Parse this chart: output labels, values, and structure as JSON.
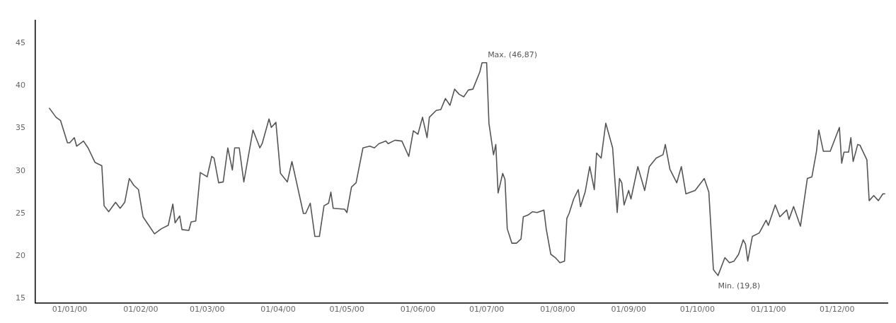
{
  "chart_data": {
    "type": "line",
    "x": [
      "1999-12-23",
      "1999-12-26",
      "1999-12-28",
      "1999-12-31",
      "2000-01-01",
      "2000-01-03",
      "2000-01-04",
      "2000-01-07",
      "2000-01-09",
      "2000-01-12",
      "2000-01-15",
      "2000-01-16",
      "2000-01-18",
      "2000-01-21",
      "2000-01-23",
      "2000-01-25",
      "2000-01-27",
      "2000-01-29",
      "2000-01-31",
      "2000-02-02",
      "2000-02-05",
      "2000-02-07",
      "2000-02-10",
      "2000-02-13",
      "2000-02-15",
      "2000-02-16",
      "2000-02-18",
      "2000-02-19",
      "2000-02-22",
      "2000-02-23",
      "2000-02-25",
      "2000-02-27",
      "2000-03-01",
      "2000-03-03",
      "2000-03-04",
      "2000-03-06",
      "2000-03-08",
      "2000-03-10",
      "2000-03-12",
      "2000-03-13",
      "2000-03-15",
      "2000-03-17",
      "2000-03-21",
      "2000-03-24",
      "2000-03-25",
      "2000-03-28",
      "2000-03-29",
      "2000-03-31",
      "2000-04-02",
      "2000-04-05",
      "2000-04-07",
      "2000-04-08",
      "2000-04-12",
      "2000-04-13",
      "2000-04-15",
      "2000-04-17",
      "2000-04-19",
      "2000-04-21",
      "2000-04-23",
      "2000-04-24",
      "2000-04-25",
      "2000-04-30",
      "2000-05-01",
      "2000-05-03",
      "2000-05-05",
      "2000-05-08",
      "2000-05-11",
      "2000-05-13",
      "2000-05-15",
      "2000-05-18",
      "2000-05-19",
      "2000-05-22",
      "2000-05-25",
      "2000-05-28",
      "2000-05-30",
      "2000-06-01",
      "2000-06-03",
      "2000-06-05",
      "2000-06-06",
      "2000-06-09",
      "2000-06-11",
      "2000-06-13",
      "2000-06-15",
      "2000-06-17",
      "2000-06-19",
      "2000-06-21",
      "2000-06-23",
      "2000-06-25",
      "2000-06-28",
      "2000-06-29",
      "2000-07-01",
      "2000-07-02",
      "2000-07-04",
      "2000-07-05",
      "2000-07-06",
      "2000-07-08",
      "2000-07-09",
      "2000-07-10",
      "2000-07-12",
      "2000-07-14",
      "2000-07-16",
      "2000-07-17",
      "2000-07-19",
      "2000-07-21",
      "2000-07-23",
      "2000-07-26",
      "2000-07-27",
      "2000-07-29",
      "2000-07-31",
      "2000-08-02",
      "2000-08-04",
      "2000-08-05",
      "2000-08-06",
      "2000-08-08",
      "2000-08-10",
      "2000-08-11",
      "2000-08-13",
      "2000-08-15",
      "2000-08-17",
      "2000-08-18",
      "2000-08-20",
      "2000-08-22",
      "2000-08-25",
      "2000-08-27",
      "2000-08-28",
      "2000-08-29",
      "2000-08-30",
      "2000-09-01",
      "2000-09-02",
      "2000-09-05",
      "2000-09-08",
      "2000-09-10",
      "2000-09-13",
      "2000-09-16",
      "2000-09-17",
      "2000-09-19",
      "2000-09-22",
      "2000-09-24",
      "2000-09-26",
      "2000-09-30",
      "2000-10-04",
      "2000-10-06",
      "2000-10-08",
      "2000-10-10",
      "2000-10-13",
      "2000-10-15",
      "2000-10-17",
      "2000-10-19",
      "2000-10-21",
      "2000-10-22",
      "2000-10-23",
      "2000-10-25",
      "2000-10-28",
      "2000-10-31",
      "2000-11-01",
      "2000-11-04",
      "2000-11-06",
      "2000-11-09",
      "2000-11-10",
      "2000-11-12",
      "2000-11-15",
      "2000-11-18",
      "2000-11-20",
      "2000-11-22",
      "2000-11-23",
      "2000-11-25",
      "2000-11-28",
      "2000-12-02",
      "2000-12-03",
      "2000-12-04",
      "2000-12-06",
      "2000-12-07",
      "2000-12-08",
      "2000-12-10",
      "2000-12-11",
      "2000-12-14",
      "2000-12-15",
      "2000-12-17",
      "2000-12-19",
      "2000-12-21",
      "2000-12-22"
    ],
    "series": [
      {
        "color": "#555555",
        "values": [
          37.4,
          36.3,
          35.9,
          33.3,
          33.3,
          33.9,
          32.9,
          33.5,
          32.7,
          31.0,
          30.6,
          25.9,
          25.2,
          26.3,
          25.6,
          26.3,
          29.1,
          28.3,
          27.8,
          24.6,
          23.4,
          22.6,
          23.2,
          23.6,
          26.1,
          23.9,
          24.7,
          23.1,
          23.0,
          24.0,
          24.1,
          29.8,
          29.3,
          31.7,
          31.5,
          28.6,
          28.7,
          32.7,
          30.1,
          32.7,
          32.7,
          28.7,
          34.8,
          32.7,
          33.2,
          36.1,
          35.1,
          35.7,
          29.7,
          28.7,
          31.1,
          29.9,
          25.0,
          25.0,
          26.2,
          22.3,
          22.3,
          25.9,
          26.2,
          27.5,
          25.6,
          25.5,
          25.1,
          28.1,
          28.6,
          32.7,
          32.9,
          32.7,
          33.2,
          33.5,
          33.2,
          33.6,
          33.5,
          31.7,
          34.7,
          34.3,
          36.3,
          33.9,
          36.3,
          37.1,
          37.2,
          38.5,
          37.7,
          39.6,
          39.0,
          38.7,
          39.5,
          39.6,
          41.6,
          42.7,
          42.7,
          35.6,
          31.9,
          33.1,
          27.4,
          29.7,
          29.0,
          23.2,
          21.5,
          21.5,
          22.0,
          24.6,
          24.8,
          25.2,
          25.1,
          25.4,
          23.2,
          20.2,
          19.8,
          19.2,
          19.4,
          24.4,
          25.0,
          26.7,
          27.8,
          25.8,
          27.5,
          30.5,
          27.8,
          32.1,
          31.5,
          35.6,
          32.7,
          25.1,
          29.1,
          28.6,
          26.0,
          27.7,
          26.7,
          30.5,
          27.7,
          30.5,
          31.5,
          31.9,
          33.1,
          30.2,
          28.6,
          30.5,
          27.3,
          27.7,
          29.1,
          27.5,
          18.4,
          17.7,
          19.8,
          19.2,
          19.4,
          20.2,
          21.9,
          21.4,
          19.4,
          22.3,
          22.7,
          24.2,
          23.6,
          26.0,
          24.6,
          25.4,
          24.3,
          25.8,
          23.5,
          29.1,
          29.3,
          32.3,
          34.8,
          32.3,
          32.3,
          35.1,
          30.9,
          32.2,
          32.2,
          33.9,
          31.1,
          33.1,
          33.0,
          31.3,
          26.5,
          27.1,
          26.5,
          27.3,
          27.3
        ]
      }
    ],
    "xlim": [
      "1999-12-17",
      "2000-12-23"
    ],
    "xticks": [
      {
        "value": "2000-01-01",
        "label": "01/01/00"
      },
      {
        "value": "2000-02-01",
        "label": "01/02/00"
      },
      {
        "value": "2000-03-01",
        "label": "01/03/00"
      },
      {
        "value": "2000-04-01",
        "label": "01/04/00"
      },
      {
        "value": "2000-05-01",
        "label": "01/05/00"
      },
      {
        "value": "2000-06-01",
        "label": "01/06/00"
      },
      {
        "value": "2000-07-01",
        "label": "01/07/00"
      },
      {
        "value": "2000-08-01",
        "label": "01/08/00"
      },
      {
        "value": "2000-09-01",
        "label": "01/09/00"
      },
      {
        "value": "2000-10-01",
        "label": "01/10/00"
      },
      {
        "value": "2000-11-01",
        "label": "01/11/00"
      },
      {
        "value": "2000-12-01",
        "label": "01/12/00"
      }
    ],
    "ylim": [
      14.5,
      47.7
    ],
    "yticks": [
      15,
      20,
      25,
      30,
      35,
      40,
      45
    ],
    "marker": "none",
    "line_style": "solid",
    "annotations": [
      {
        "text": "Max. (46,87)",
        "x": "2000-06-29",
        "y": 42.7
      },
      {
        "text": "Min. (19,8)",
        "x": "2000-10-10",
        "y": 17.7
      }
    ]
  }
}
